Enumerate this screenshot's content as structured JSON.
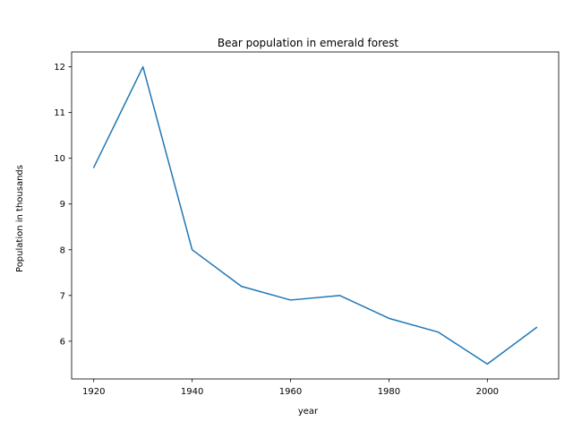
{
  "chart_data": {
    "type": "line",
    "title": "Bear population in emerald forest",
    "xlabel": "year",
    "ylabel": "Population in thousands",
    "x": [
      1920,
      1930,
      1940,
      1950,
      1960,
      1970,
      1980,
      1990,
      2000,
      2010
    ],
    "series": [
      {
        "values": [
          9.8,
          12.0,
          8.0,
          7.2,
          6.9,
          7.0,
          6.5,
          6.2,
          5.5,
          6.3
        ],
        "color": "#1f77b4"
      }
    ],
    "xlim": [
      1915.5,
      2014.5
    ],
    "ylim": [
      5.175,
      12.325
    ],
    "xticks": [
      1920,
      1940,
      1960,
      1980,
      2000
    ],
    "yticks": [
      6,
      7,
      8,
      9,
      10,
      11,
      12
    ],
    "grid": false,
    "legend": false
  }
}
